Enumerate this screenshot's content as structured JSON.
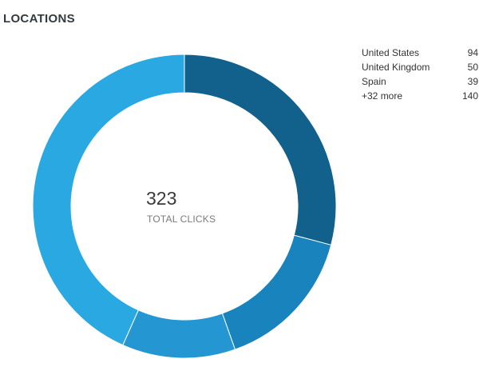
{
  "header": {
    "title": "LOCATIONS"
  },
  "center": {
    "total": "323",
    "label": "TOTAL CLICKS"
  },
  "legend": [
    {
      "label": "United States",
      "value": "94"
    },
    {
      "label": "United Kingdom",
      "value": "50"
    },
    {
      "label": "Spain",
      "value": "39"
    },
    {
      "label": "+32 more",
      "value": "140"
    }
  ],
  "chart_data": {
    "type": "pie",
    "donut": true,
    "categories": [
      "United States",
      "United Kingdom",
      "Spain",
      "+32 more"
    ],
    "values": [
      94,
      50,
      39,
      140
    ],
    "total": 323,
    "colors": [
      "#12618d",
      "#1883bc",
      "#2497d2",
      "#29a8e2"
    ]
  }
}
